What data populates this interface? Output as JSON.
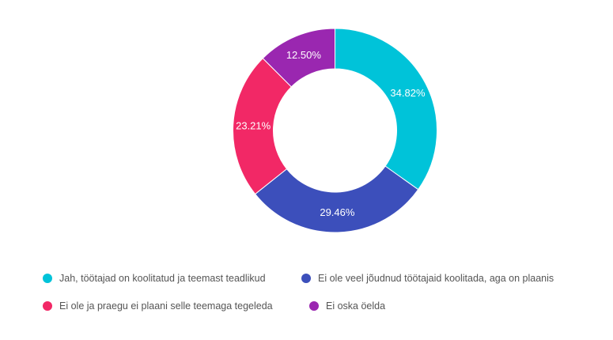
{
  "chart_data": {
    "type": "pie",
    "variant": "donut",
    "unit": "%",
    "legend_position": "bottom",
    "slices": [
      {
        "label": "Jah, töötajad on koolitatud ja teemast teadlikud",
        "value": 34.82,
        "display": "34.82%",
        "color": "#00c3d9"
      },
      {
        "label": "Ei ole veel jõudnud töötajaid koolitada, aga on plaanis",
        "value": 29.46,
        "display": "29.46%",
        "color": "#3c4fbb"
      },
      {
        "label": "Ei ole ja praegu ei plaani selle teemaga tegeleda",
        "value": 23.21,
        "display": "23.21%",
        "color": "#f22866"
      },
      {
        "label": "Ei oska öelda",
        "value": 12.5,
        "display": "12.50%",
        "color": "#9a27b0"
      }
    ]
  }
}
